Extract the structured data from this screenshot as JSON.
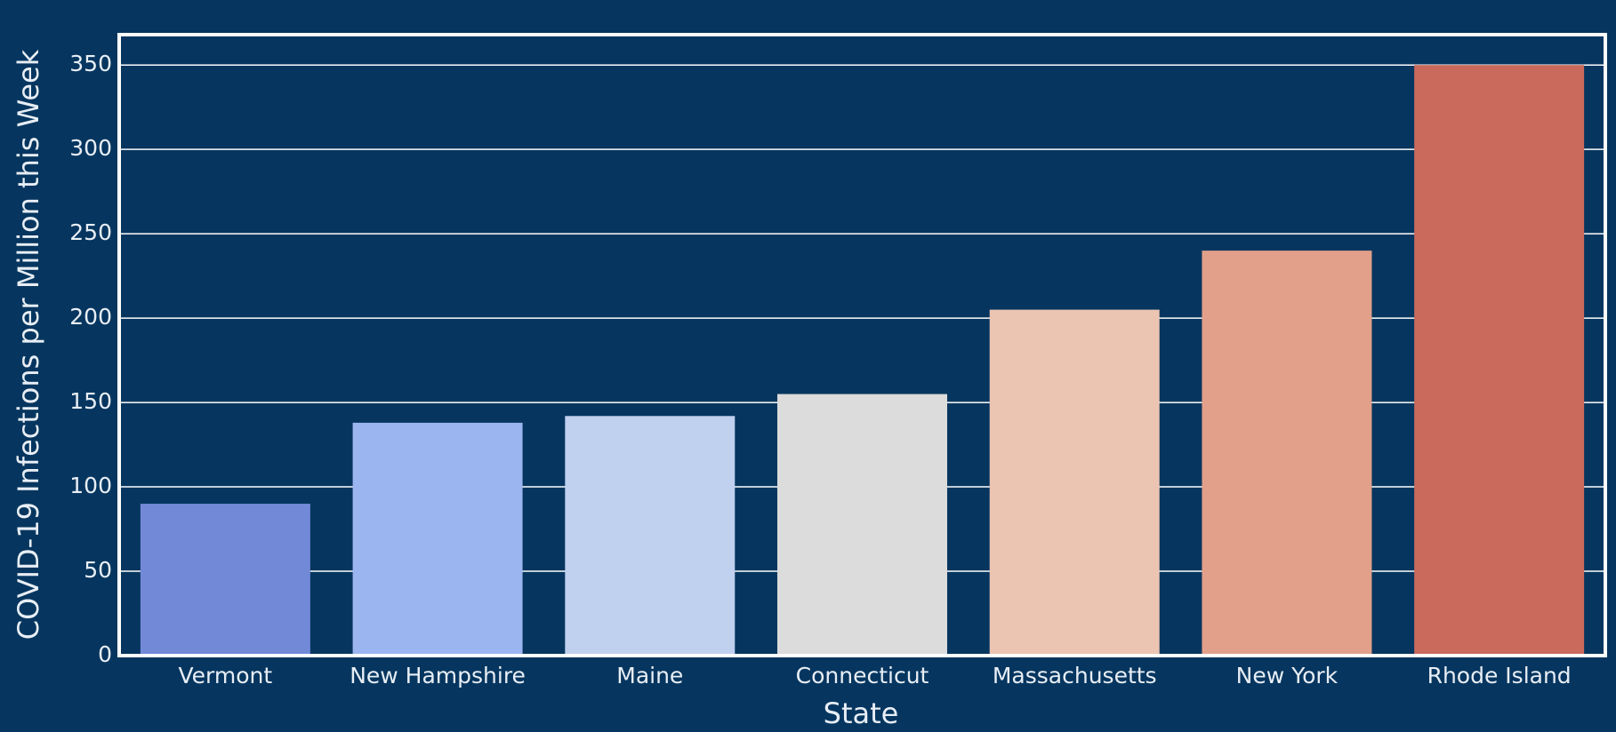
{
  "chart_data": {
    "type": "bar",
    "x_label": "State",
    "y_label": "COVID-19 Infections per Million this Week",
    "categories": [
      "Vermont",
      "New Hampshire",
      "Maine",
      "Connecticut",
      "Massachusetts",
      "New York",
      "Rhode Island"
    ],
    "values": [
      90,
      138,
      142,
      155,
      205,
      240,
      350
    ],
    "colors": [
      "#7289d8",
      "#9bb5f0",
      "#c0d0ef",
      "#dcdcdc",
      "#ecc4b2",
      "#e2a08a",
      "#c96a5c"
    ],
    "ylim": [
      0,
      368
    ],
    "yticks": [
      0,
      50,
      100,
      150,
      200,
      250,
      300,
      350
    ],
    "grid": true
  }
}
